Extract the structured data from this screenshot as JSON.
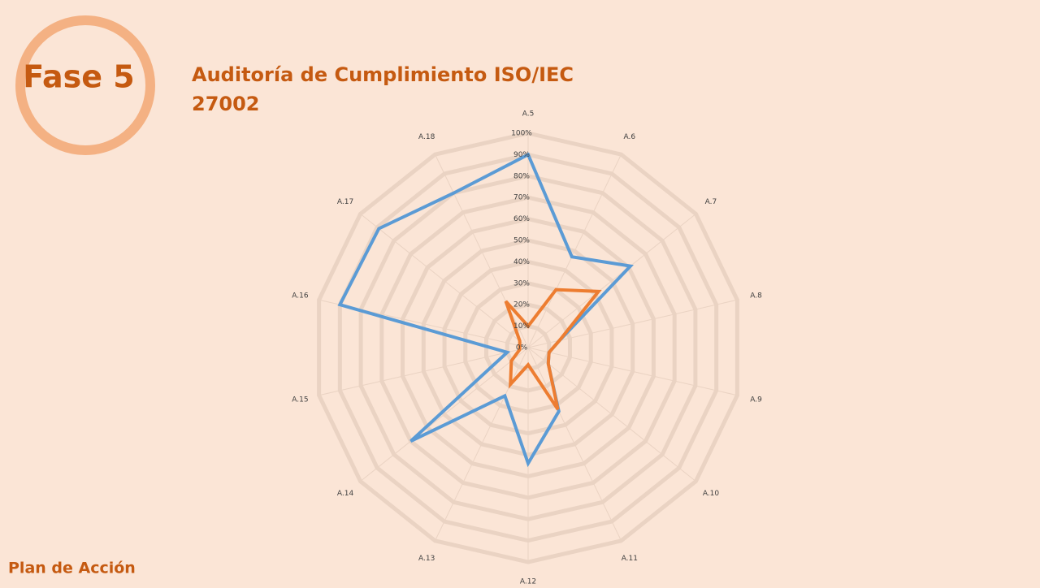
{
  "header": {
    "phase": "Fase 5",
    "footer": "Plan de Acción"
  },
  "chart_data": {
    "type": "radar",
    "title": "Auditoría de Cumplimiento ISO/IEC 27002",
    "categories": [
      "A.5",
      "A.6",
      "A.7",
      "A.8",
      "A.9",
      "A.10",
      "A.11",
      "A.12",
      "A.13",
      "A.14",
      "A.15",
      "A.16",
      "A.17",
      "A.18"
    ],
    "series": [
      {
        "color": "#5b9bd5",
        "values": [
          90,
          47,
          61,
          15,
          10,
          12,
          33,
          54,
          25,
          70,
          10,
          90,
          89,
          80
        ]
      },
      {
        "color": "#ed7d31",
        "values": [
          10,
          30,
          42,
          15,
          10,
          12,
          32,
          8,
          19,
          10,
          4,
          4,
          5,
          24
        ]
      }
    ],
    "ylim": [
      0,
      100
    ],
    "yticks": [
      {
        "value": 0,
        "label": "0%"
      },
      {
        "value": 10,
        "label": "10%"
      },
      {
        "value": 20,
        "label": "20%"
      },
      {
        "value": 30,
        "label": "30%"
      },
      {
        "value": 40,
        "label": "40%"
      },
      {
        "value": 50,
        "label": "50%"
      },
      {
        "value": 60,
        "label": "60%"
      },
      {
        "value": 70,
        "label": "70%"
      },
      {
        "value": 80,
        "label": "80%"
      },
      {
        "value": 90,
        "label": "90%"
      },
      {
        "value": 100,
        "label": "100%"
      }
    ],
    "grid": true
  }
}
